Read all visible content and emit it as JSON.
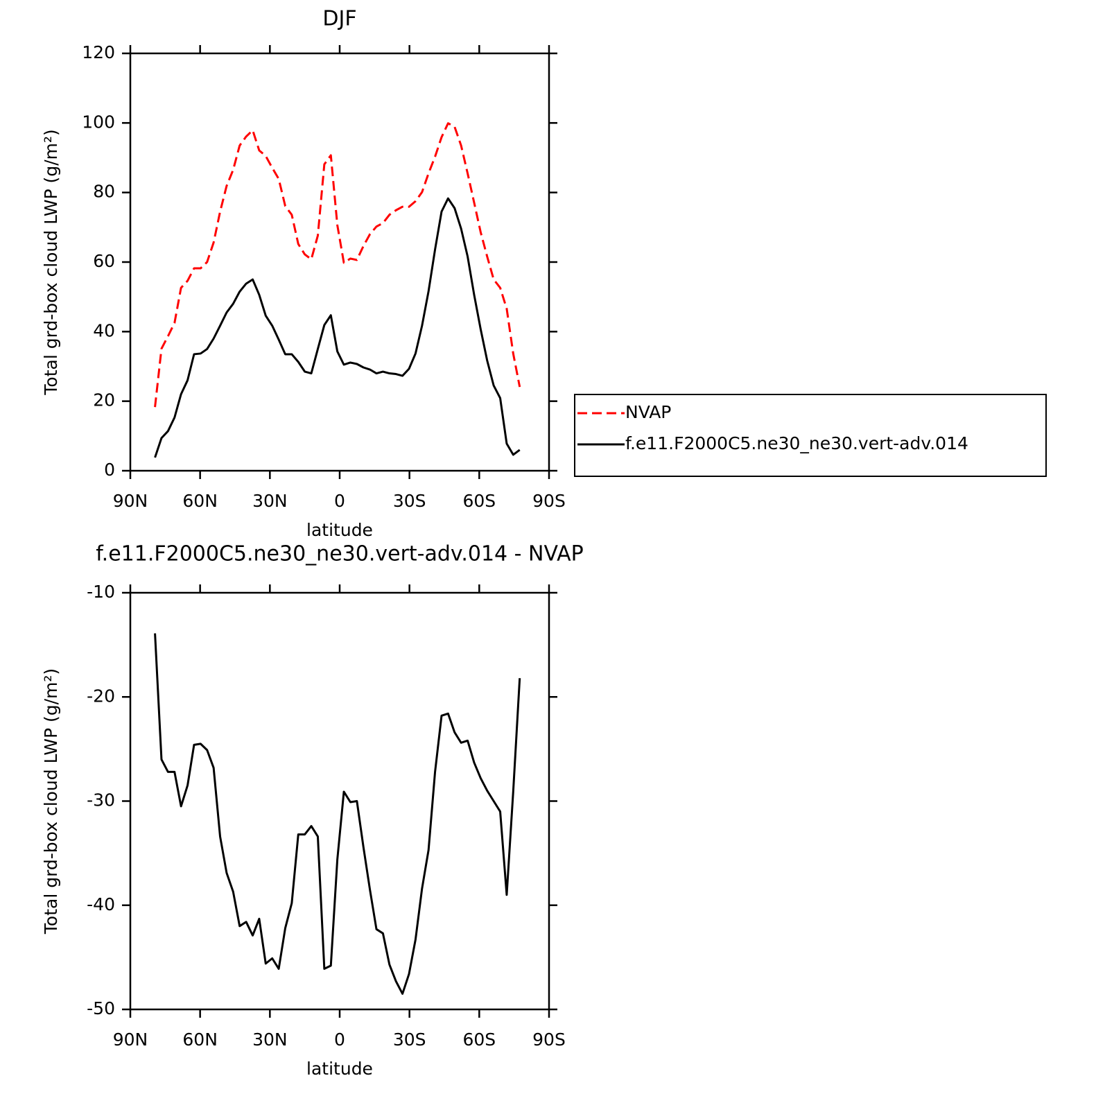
{
  "chart_data": [
    {
      "type": "line",
      "title": "DJF",
      "x_label": "latitude",
      "y_label": "Total grd-box cloud LWP (g/m²)",
      "x": [
        79.4,
        76.6,
        73.8,
        71.0,
        68.2,
        65.4,
        62.6,
        59.8,
        57.0,
        54.2,
        51.4,
        48.6,
        45.8,
        43.0,
        40.2,
        37.4,
        34.6,
        31.8,
        29.0,
        26.2,
        23.4,
        20.6,
        17.8,
        15.0,
        12.2,
        9.4,
        6.6,
        3.8,
        1.0,
        -1.8,
        -4.6,
        -7.4,
        -10.2,
        -13.0,
        -15.8,
        -18.6,
        -21.4,
        -24.2,
        -27.0,
        -29.8,
        -32.6,
        -35.4,
        -38.2,
        -41.0,
        -43.8,
        -46.6,
        -49.4,
        -52.2,
        -55.0,
        -57.8,
        -60.6,
        -63.4,
        -66.2,
        -69.0,
        -71.8,
        -74.6,
        -77.4
      ],
      "series": [
        {
          "name": "NVAP",
          "color": "#ff0000",
          "dashed": true,
          "values": [
            18.3,
            35.1,
            38.7,
            42.5,
            52.6,
            54.6,
            58.2,
            58.2,
            60,
            65.6,
            74.5,
            81.9,
            86.5,
            93.5,
            96.1,
            97.9,
            92.1,
            90.5,
            87.1,
            83.9,
            76.1,
            73.6,
            65.2,
            62.2,
            60.8,
            67.6,
            88.1,
            90.7,
            70.6,
            59.8,
            61,
            60.6,
            64.6,
            68,
            70.2,
            71.2,
            73.6,
            74.9,
            75.9,
            75.9,
            77.5,
            80.1,
            85.5,
            90.3,
            95.9,
            99.9,
            98.9,
            93.5,
            85.5,
            77.1,
            68.6,
            61.6,
            55,
            52.6,
            46.6,
            33.7,
            24.1
          ]
        },
        {
          "name": "f.e11.F2000C5.ne30_ne30.vert-adv.014",
          "color": "#000000",
          "dashed": false,
          "values": [
            3.8,
            9.4,
            11.4,
            15.3,
            22,
            26,
            33.5,
            33.7,
            35,
            38,
            41.7,
            45.5,
            48,
            51.5,
            53.8,
            55,
            50.6,
            44.6,
            41.7,
            37.7,
            33.5,
            33.5,
            31.3,
            28.5,
            28,
            35,
            41.9,
            44.7,
            34.3,
            30.5,
            31.1,
            30.7,
            29.7,
            29.1,
            28,
            28.5,
            28,
            27.8,
            27.3,
            29.3,
            33.7,
            41.7,
            51.6,
            63.6,
            74.5,
            78.3,
            75.5,
            69.6,
            61.6,
            50.6,
            40.7,
            31.7,
            24.5,
            20.9,
            7.8,
            4.6,
            6
          ]
        }
      ],
      "xlim": [
        90,
        -90
      ],
      "xticks": [
        {
          "value": 90,
          "label": "90N"
        },
        {
          "value": 60,
          "label": "60N"
        },
        {
          "value": 30,
          "label": "30N"
        },
        0,
        {
          "value": -30,
          "label": "30S"
        },
        {
          "value": -60,
          "label": "60S"
        },
        {
          "value": -90,
          "label": "90S"
        }
      ],
      "ylim": [
        0,
        120
      ],
      "yticks": [
        0,
        20,
        40,
        60,
        80,
        100,
        120
      ],
      "legend": "right"
    },
    {
      "type": "line",
      "title": "f.e11.F2000C5.ne30_ne30.vert-adv.014 - NVAP",
      "x_label": "latitude",
      "y_label": "Total grd-box cloud LWP (g/m²)",
      "x": [
        79.4,
        76.6,
        73.8,
        71.0,
        68.2,
        65.4,
        62.6,
        59.8,
        57.0,
        54.2,
        51.4,
        48.6,
        45.8,
        43.0,
        40.2,
        37.4,
        34.6,
        31.8,
        29.0,
        26.2,
        23.4,
        20.6,
        17.8,
        15.0,
        12.2,
        9.4,
        6.6,
        3.8,
        1.0,
        -1.8,
        -4.6,
        -7.4,
        -10.2,
        -13.0,
        -15.8,
        -18.6,
        -21.4,
        -24.2,
        -27.0,
        -29.8,
        -32.6,
        -35.4,
        -38.2,
        -41.0,
        -43.8,
        -46.6,
        -49.4,
        -52.2,
        -55.0,
        -57.8,
        -60.6,
        -63.4,
        -66.2,
        -69.0,
        -71.8,
        -74.6,
        -77.4
      ],
      "color": "#000000",
      "values": [
        -13.9,
        -26,
        -27.2,
        -27.2,
        -30.5,
        -28.5,
        -24.6,
        -24.5,
        -25.1,
        -26.8,
        -33.4,
        -36.9,
        -38.7,
        -42,
        -41.6,
        -42.9,
        -41.3,
        -45.6,
        -45.1,
        -46.1,
        -42.2,
        -39.8,
        -33.2,
        -33.2,
        -32.4,
        -33.4,
        -46.1,
        -45.8,
        -35.6,
        -29.1,
        -30.1,
        -30,
        -34.4,
        -38.5,
        -42.3,
        -42.7,
        -45.7,
        -47.3,
        -48.5,
        -46.6,
        -43.3,
        -38.4,
        -34.7,
        -27.2,
        -21.8,
        -21.6,
        -23.4,
        -24.4,
        -24.2,
        -26.3,
        -27.8,
        -29,
        -30,
        -31,
        -39,
        -29.1,
        -18.2
      ],
      "xlim": [
        90,
        -90
      ],
      "xticks": [
        {
          "value": 90,
          "label": "90N"
        },
        {
          "value": 60,
          "label": "60N"
        },
        {
          "value": 30,
          "label": "30N"
        },
        0,
        {
          "value": -30,
          "label": "30S"
        },
        {
          "value": -60,
          "label": "60S"
        },
        {
          "value": -90,
          "label": "90S"
        }
      ],
      "ylim": [
        -50,
        -10
      ],
      "yticks": [
        -50,
        -40,
        -30,
        -20,
        -10
      ]
    }
  ]
}
